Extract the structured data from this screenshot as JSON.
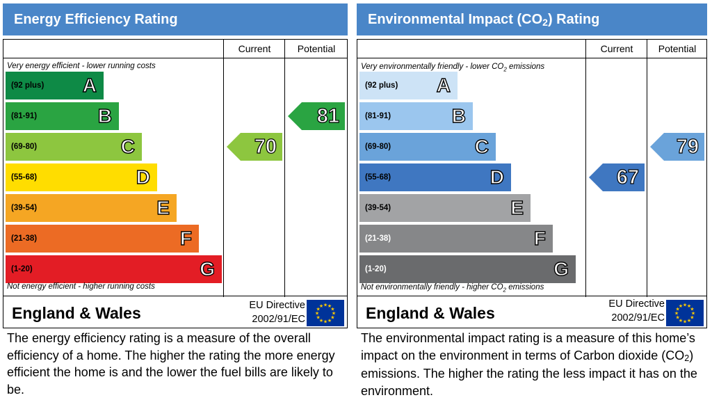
{
  "chart_data": [
    {
      "type": "bar",
      "title": "Energy Efficiency Rating",
      "columns": [
        "Current",
        "Potential"
      ],
      "top_caption": "Very energy efficient - lower running costs",
      "bottom_caption": "Not energy efficient - higher running costs",
      "categories": [
        "A",
        "B",
        "C",
        "D",
        "E",
        "F",
        "G"
      ],
      "ranges": [
        "(92 plus)",
        "(81-91)",
        "(69-80)",
        "(55-68)",
        "(39-54)",
        "(21-38)",
        "(1-20)"
      ],
      "colors": [
        "#0e8a46",
        "#2aa442",
        "#8dc63f",
        "#ffdd00",
        "#f5a623",
        "#ec6b24",
        "#e31d25"
      ],
      "current": {
        "value": 70,
        "band": "C",
        "color": "#8dc63f"
      },
      "potential": {
        "value": 81,
        "band": "B",
        "color": "#2aa442"
      },
      "country": "England & Wales",
      "eu_directive": [
        "EU Directive",
        "2002/91/EC"
      ],
      "description": "The energy efficiency rating is a measure of the overall efficiency of a home. The higher the rating the more energy efficient the home is and the lower the fuel bills are likely to be."
    },
    {
      "type": "bar",
      "title": "Environmental Impact (CO",
      "title_sub": "2",
      "title_end": ") Rating",
      "columns": [
        "Current",
        "Potential"
      ],
      "top_caption": "Very environmentally friendly - lower CO",
      "top_caption_sub": "2",
      "top_caption_end": " emissions",
      "bottom_caption": "Not environmentally friendly - higher CO",
      "bottom_caption_sub": "2",
      "bottom_caption_end": " emissions",
      "categories": [
        "A",
        "B",
        "C",
        "D",
        "E",
        "F",
        "G"
      ],
      "ranges": [
        "(92 plus)",
        "(81-91)",
        "(69-80)",
        "(55-68)",
        "(39-54)",
        "(21-38)",
        "(1-20)"
      ],
      "colors": [
        "#cde3f6",
        "#9bc6ee",
        "#6aa3da",
        "#3f77c1",
        "#a2a3a5",
        "#868789",
        "#6a6b6d"
      ],
      "range_text_colors": [
        "#000",
        "#000",
        "#000",
        "#000",
        "#000",
        "#fff",
        "#fff"
      ],
      "current": {
        "value": 67,
        "band": "D",
        "color": "#3f77c1"
      },
      "potential": {
        "value": 79,
        "band": "C",
        "color": "#6aa3da"
      },
      "country": "England & Wales",
      "eu_directive": [
        "EU Directive",
        "2002/91/EC"
      ],
      "description": "The environmental impact rating is a measure of this home’s impact on the environment in terms of Carbon dioxide (CO",
      "description_sub": "2",
      "description_end": ") emissions. The higher the rating the less impact it has on the environment."
    }
  ]
}
